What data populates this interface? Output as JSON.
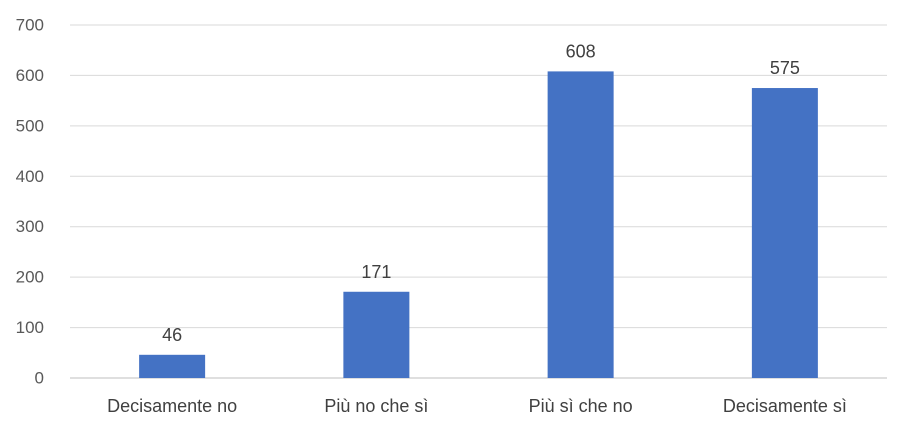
{
  "chart_data": {
    "type": "bar",
    "categories": [
      "Decisamente no",
      "Più no che sì",
      "Più sì che no",
      "Decisamente sì"
    ],
    "values": [
      46,
      171,
      608,
      575
    ],
    "data_labels": [
      "46",
      "171",
      "608",
      "575"
    ],
    "title": "",
    "xlabel": "",
    "ylabel": "",
    "ylim": [
      0,
      700
    ],
    "yticks": [
      0,
      100,
      200,
      300,
      400,
      500,
      600,
      700
    ],
    "grid": true,
    "legend": "none",
    "bar_color": "#4472c4"
  }
}
